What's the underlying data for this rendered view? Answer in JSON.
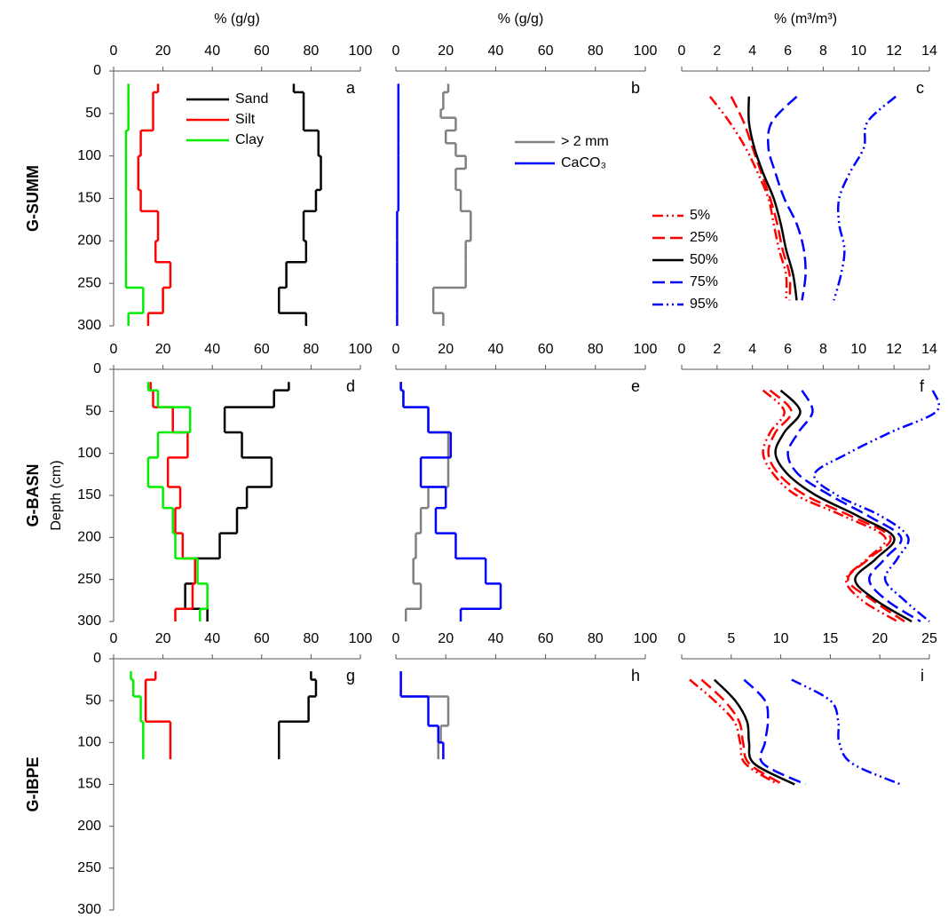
{
  "chart_data": [
    {
      "type": "step",
      "label": "a",
      "x_label": "% (g/g)",
      "row_label": "G-SUMM",
      "legend": true,
      "xlim": [
        0,
        100
      ],
      "xticks": [
        0,
        20,
        40,
        60,
        80,
        100
      ],
      "ylim": [
        0,
        300
      ],
      "yticks": [
        0,
        50,
        100,
        150,
        200,
        250,
        300
      ],
      "series": [
        {
          "name": "Sand",
          "color": "#000000",
          "depths": [
            15,
            25,
            45,
            70,
            100,
            140,
            165,
            200,
            225,
            255,
            285,
            300
          ],
          "values": [
            73,
            77,
            77,
            83,
            84,
            82,
            77,
            78,
            70,
            67,
            78
          ]
        },
        {
          "name": "Silt",
          "color": "#ff0000",
          "depths": [
            15,
            25,
            45,
            70,
            100,
            140,
            165,
            200,
            225,
            255,
            285,
            300
          ],
          "values": [
            18,
            16,
            16,
            11,
            10,
            11,
            18,
            17,
            23,
            20,
            14
          ]
        },
        {
          "name": "Clay",
          "color": "#00ee00",
          "depths": [
            15,
            25,
            45,
            70,
            100,
            140,
            165,
            200,
            225,
            255,
            285,
            300
          ],
          "values": [
            6,
            6,
            6,
            5,
            5,
            5,
            5,
            5,
            5,
            12,
            6
          ]
        }
      ]
    },
    {
      "type": "step",
      "label": "b",
      "x_label": "% (g/g)",
      "legend": true,
      "xlim": [
        0,
        100
      ],
      "xticks": [
        0,
        20,
        40,
        60,
        80,
        100
      ],
      "ylim": [
        0,
        300
      ],
      "series": [
        {
          "name": "> 2 mm",
          "color": "#808080",
          "depths": [
            15,
            25,
            45,
            55,
            70,
            85,
            100,
            115,
            140,
            165,
            200,
            225,
            255,
            285,
            300
          ],
          "values": [
            21,
            19,
            18,
            24,
            20,
            24,
            28,
            24,
            26,
            30,
            28,
            28,
            15,
            19
          ]
        },
        {
          "name": "CaCO₃",
          "color": "#0000ff",
          "depths": [
            15,
            25,
            45,
            55,
            70,
            85,
            100,
            115,
            140,
            165,
            200,
            225,
            255,
            285,
            300
          ],
          "values": [
            1,
            1,
            1,
            1,
            1,
            1,
            1,
            1,
            1,
            0.5,
            0.5,
            0.5,
            0.5,
            0.5
          ]
        }
      ]
    },
    {
      "type": "line",
      "label": "c",
      "x_label": "% (m³/m³)",
      "legend": true,
      "xlim": [
        0,
        14
      ],
      "xticks": [
        0,
        2,
        4,
        6,
        8,
        10,
        12,
        14
      ],
      "ylim": [
        0,
        300
      ],
      "series": [
        {
          "name": "5%",
          "color": "#ff0000",
          "style": "dash-dot-dot",
          "depths": [
            30,
            60,
            90,
            120,
            150,
            180,
            210,
            240,
            270
          ],
          "values": [
            1.6,
            2.7,
            3.6,
            4.3,
            4.9,
            5.2,
            5.5,
            5.9,
            5.9
          ]
        },
        {
          "name": "25%",
          "color": "#ff0000",
          "style": "dash",
          "depths": [
            30,
            60,
            90,
            120,
            150,
            180,
            210,
            240,
            270
          ],
          "values": [
            2.8,
            3.5,
            4.0,
            4.5,
            5.0,
            5.4,
            5.7,
            6.1,
            6.1
          ]
        },
        {
          "name": "50%",
          "color": "#000000",
          "style": "solid",
          "depths": [
            30,
            60,
            90,
            120,
            150,
            180,
            210,
            240,
            270
          ],
          "values": [
            3.8,
            3.8,
            4.1,
            4.6,
            5.2,
            5.6,
            5.9,
            6.3,
            6.5
          ]
        },
        {
          "name": "75%",
          "color": "#0000ff",
          "style": "dash",
          "depths": [
            30,
            60,
            90,
            120,
            150,
            180,
            210,
            240,
            270
          ],
          "values": [
            6.5,
            5.1,
            4.9,
            5.3,
            5.8,
            6.5,
            6.9,
            7.0,
            6.8
          ]
        },
        {
          "name": "95%",
          "color": "#0000ff",
          "style": "dash-dot-dot",
          "depths": [
            30,
            60,
            90,
            120,
            150,
            180,
            210,
            240,
            270
          ],
          "values": [
            12.1,
            10.5,
            10.3,
            9.5,
            8.9,
            8.9,
            9.2,
            9.0,
            8.6
          ]
        }
      ]
    },
    {
      "type": "step",
      "label": "d",
      "row_label": "G-BASN",
      "y_label": "Depth (cm)",
      "xlim": [
        0,
        100
      ],
      "xticks": [
        0,
        20,
        40,
        60,
        80,
        100
      ],
      "ylim": [
        0,
        300
      ],
      "yticks": [
        0,
        50,
        100,
        150,
        200,
        250,
        300
      ],
      "series": [
        {
          "name": "Sand",
          "color": "#000000",
          "depths": [
            15,
            25,
            45,
            75,
            105,
            140,
            165,
            195,
            225,
            255,
            285,
            300
          ],
          "values": [
            71,
            65,
            45,
            52,
            64,
            54,
            50,
            43,
            33,
            29,
            38
          ]
        },
        {
          "name": "Silt",
          "color": "#ff0000",
          "depths": [
            15,
            25,
            45,
            75,
            105,
            140,
            165,
            195,
            225,
            255,
            285,
            300
          ],
          "values": [
            15,
            16,
            24,
            30,
            22,
            27,
            25,
            28,
            33,
            32,
            25
          ]
        },
        {
          "name": "Clay",
          "color": "#00ee00",
          "depths": [
            15,
            25,
            45,
            75,
            105,
            140,
            165,
            195,
            225,
            255,
            285,
            300
          ],
          "values": [
            14,
            18,
            31,
            18,
            14,
            20,
            24,
            25,
            34,
            38,
            35
          ]
        }
      ]
    },
    {
      "type": "step",
      "label": "e",
      "xlim": [
        0,
        100
      ],
      "xticks": [
        0,
        20,
        40,
        60,
        80,
        100
      ],
      "ylim": [
        0,
        300
      ],
      "series": [
        {
          "name": "> 2 mm",
          "color": "#808080",
          "depths": [
            15,
            25,
            45,
            75,
            105,
            140,
            165,
            195,
            225,
            255,
            285,
            300
          ],
          "values": [
            2,
            3,
            13,
            21,
            21,
            13,
            10,
            8,
            7,
            10,
            4
          ]
        },
        {
          "name": "CaCO₃",
          "color": "#0000ff",
          "depths": [
            15,
            25,
            45,
            75,
            105,
            140,
            165,
            195,
            225,
            255,
            285,
            300
          ],
          "values": [
            2,
            3,
            13,
            22,
            10,
            20,
            16,
            24,
            36,
            42,
            26
          ]
        }
      ]
    },
    {
      "type": "line",
      "label": "f",
      "xlim": [
        0,
        14
      ],
      "xticks": [
        0,
        2,
        4,
        6,
        8,
        10,
        12,
        14
      ],
      "ylim": [
        0,
        300
      ],
      "series": [
        {
          "name": "5%",
          "color": "#ff0000",
          "style": "dash-dot-dot",
          "depths": [
            25,
            50,
            75,
            100,
            125,
            150,
            175,
            200,
            225,
            250,
            275,
            300
          ],
          "values": [
            4.6,
            5.8,
            5.0,
            4.6,
            5.2,
            6.5,
            9.2,
            11.5,
            10.5,
            9.3,
            10.2,
            12.2
          ]
        },
        {
          "name": "25%",
          "color": "#ff0000",
          "style": "dash",
          "depths": [
            25,
            50,
            75,
            100,
            125,
            150,
            175,
            200,
            225,
            250,
            275,
            300
          ],
          "values": [
            5.0,
            6.2,
            5.3,
            4.9,
            5.5,
            7.0,
            9.6,
            11.8,
            10.6,
            9.4,
            10.8,
            12.6
          ]
        },
        {
          "name": "50%",
          "color": "#000000",
          "style": "solid",
          "depths": [
            25,
            50,
            75,
            100,
            125,
            150,
            175,
            200,
            225,
            250,
            275,
            300
          ],
          "values": [
            5.6,
            6.7,
            5.8,
            5.3,
            6.0,
            7.6,
            10.0,
            12.0,
            11.0,
            9.8,
            11.0,
            13.0
          ]
        },
        {
          "name": "75%",
          "color": "#0000ff",
          "style": "dash",
          "depths": [
            25,
            50,
            75,
            100,
            125,
            150,
            175,
            200,
            225,
            250,
            275,
            300
          ],
          "values": [
            6.8,
            7.4,
            6.6,
            6.0,
            6.6,
            8.4,
            10.6,
            12.4,
            11.5,
            10.6,
            11.6,
            13.5
          ]
        },
        {
          "name": "95%",
          "color": "#0000ff",
          "style": "dash-dot-dot",
          "depths": [
            25,
            50,
            75,
            100,
            125,
            150,
            175,
            200,
            225,
            250,
            275,
            300
          ],
          "values": [
            14.2,
            14.4,
            11.8,
            9.4,
            7.5,
            8.8,
            11.3,
            12.8,
            12.2,
            11.5,
            12.6,
            14.0
          ]
        }
      ]
    },
    {
      "type": "step",
      "label": "g",
      "row_label": "G-IBPE",
      "xlim": [
        0,
        100
      ],
      "xticks": [
        0,
        20,
        40,
        60,
        80,
        100
      ],
      "ylim": [
        0,
        300
      ],
      "yticks": [
        0,
        50,
        100,
        150,
        200,
        250,
        300
      ],
      "series": [
        {
          "name": "Sand",
          "color": "#000000",
          "depths": [
            15,
            25,
            45,
            75,
            120
          ],
          "values": [
            80,
            82,
            79,
            67
          ]
        },
        {
          "name": "Silt",
          "color": "#ff0000",
          "depths": [
            15,
            25,
            45,
            75,
            120
          ],
          "values": [
            17,
            13,
            13,
            23
          ]
        },
        {
          "name": "Clay",
          "color": "#00ee00",
          "depths": [
            15,
            25,
            45,
            75,
            120
          ],
          "values": [
            7,
            8,
            11,
            12
          ]
        }
      ]
    },
    {
      "type": "step",
      "label": "h",
      "xlim": [
        0,
        100
      ],
      "xticks": [
        0,
        20,
        40,
        60,
        80,
        100
      ],
      "ylim": [
        0,
        300
      ],
      "series": [
        {
          "name": "> 2 mm",
          "color": "#808080",
          "depths": [
            15,
            45,
            80,
            100,
            120
          ],
          "values": [
            2,
            21,
            18,
            17
          ]
        },
        {
          "name": "CaCO₃",
          "color": "#0000ff",
          "depths": [
            15,
            45,
            80,
            100,
            120
          ],
          "values": [
            2,
            13,
            17,
            19
          ]
        }
      ]
    },
    {
      "type": "line",
      "label": "i",
      "xlim": [
        0,
        25
      ],
      "xticks": [
        0,
        5,
        10,
        15,
        20,
        25
      ],
      "ylim": [
        0,
        300
      ],
      "series": [
        {
          "name": "5%",
          "color": "#ff0000",
          "style": "dash-dot-dot",
          "depths": [
            25,
            50,
            75,
            100,
            125,
            150
          ],
          "values": [
            0.8,
            3.3,
            5.3,
            5.9,
            6.4,
            9.7
          ]
        },
        {
          "name": "25%",
          "color": "#ff0000",
          "style": "dash",
          "depths": [
            25,
            50,
            75,
            100,
            125,
            150
          ],
          "values": [
            2.0,
            4.3,
            5.8,
            6.2,
            6.8,
            10.2
          ]
        },
        {
          "name": "50%",
          "color": "#000000",
          "style": "solid",
          "depths": [
            25,
            50,
            75,
            100,
            125,
            150
          ],
          "values": [
            3.3,
            5.4,
            6.6,
            6.8,
            7.3,
            11.4
          ]
        },
        {
          "name": "75%",
          "color": "#0000ff",
          "style": "dash",
          "depths": [
            25,
            50,
            75,
            100,
            125,
            150
          ],
          "values": [
            6.3,
            8.4,
            8.7,
            8.4,
            8.2,
            12.5
          ]
        },
        {
          "name": "95%",
          "color": "#0000ff",
          "style": "dash-dot-dot",
          "depths": [
            25,
            50,
            75,
            100,
            125,
            150
          ],
          "values": [
            11.1,
            15.0,
            15.8,
            15.9,
            17.2,
            22.1
          ]
        }
      ]
    }
  ]
}
